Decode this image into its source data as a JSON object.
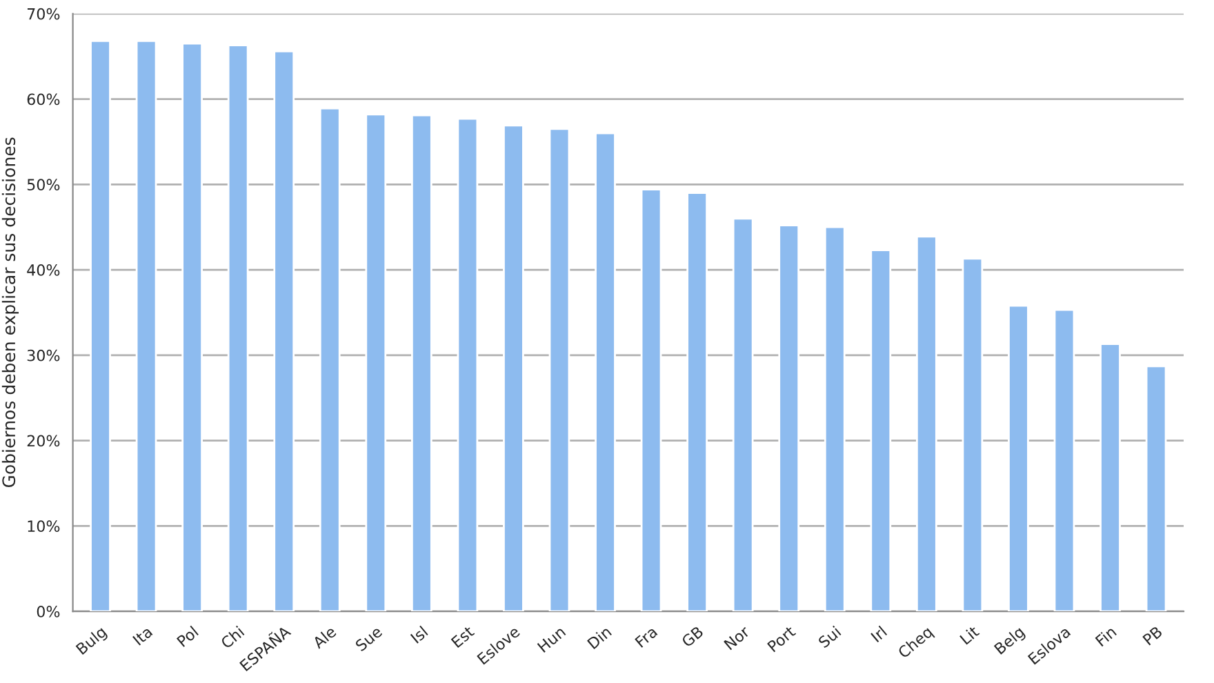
{
  "chart_data": {
    "type": "bar",
    "ylabel": "Gobiernos deben explicar sus decisiones",
    "categories": [
      "Bulg",
      "Ita",
      "Pol",
      "Chi",
      "ESPAÑA",
      "Ale",
      "Sue",
      "Isl",
      "Est",
      "Eslove",
      "Hun",
      "Din",
      "Fra",
      "GB",
      "Nor",
      "Port",
      "Sui",
      "Irl",
      "Cheq",
      "Lit",
      "Belg",
      "Eslova",
      "Fin",
      "PB"
    ],
    "values": [
      66.8,
      66.8,
      66.5,
      66.3,
      65.6,
      58.9,
      58.2,
      58.1,
      57.7,
      56.9,
      56.5,
      56.0,
      49.4,
      49.0,
      46.0,
      45.2,
      45.0,
      42.3,
      43.9,
      41.3,
      35.8,
      35.3,
      31.3,
      28.7
    ],
    "color": "#8dbbef",
    "ylim": [
      0,
      70
    ],
    "yticks": [
      {
        "value": 0,
        "label": "0%"
      },
      {
        "value": 10,
        "label": "10%"
      },
      {
        "value": 20,
        "label": "20%"
      },
      {
        "value": 30,
        "label": "30%"
      },
      {
        "value": 40,
        "label": "40%"
      },
      {
        "value": 50,
        "label": "50%"
      },
      {
        "value": 60,
        "label": "60%"
      },
      {
        "value": 70,
        "label": "70%"
      }
    ],
    "grid": "y"
  }
}
